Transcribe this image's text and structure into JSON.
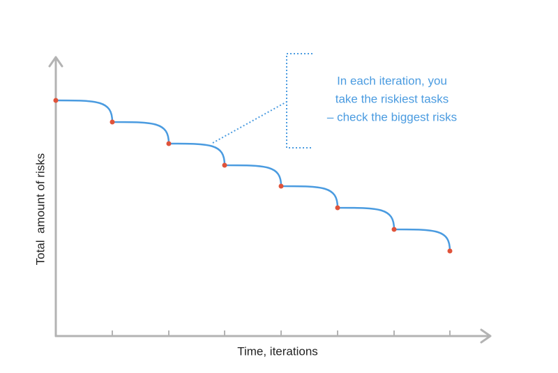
{
  "axes": {
    "y_label": "Total  amount of risks",
    "x_label": "Time, iterations"
  },
  "annotation": {
    "lines": [
      "In each iteration, you",
      "take the riskiest tasks",
      "– check the biggest risks"
    ]
  }
}
